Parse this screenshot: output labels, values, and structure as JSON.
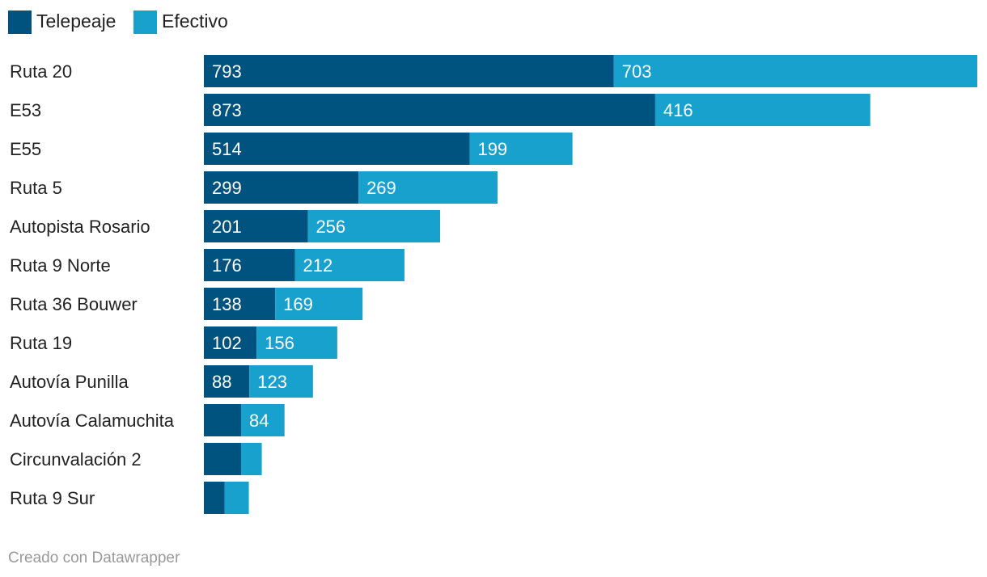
{
  "chart_data": {
    "type": "bar",
    "orientation": "horizontal",
    "stacked": true,
    "title": "",
    "xlabel": "",
    "ylabel": "",
    "legend_position": "top-left",
    "grid": false,
    "xlim": [
      0,
      1496
    ],
    "categories": [
      "Ruta 20",
      "E53",
      "E55",
      "Ruta 5",
      "Autopista Rosario",
      "Ruta 9 Norte",
      "Ruta 36 Bouwer",
      "Ruta 19",
      "Autovía Punilla",
      "Autovía Calamuchita",
      "Circunvalación 2",
      "Ruta 9 Sur"
    ],
    "series": [
      {
        "name": "Telepeaje",
        "color": "#00527f",
        "values": [
          793,
          873,
          514,
          299,
          201,
          176,
          138,
          102,
          88,
          72,
          72,
          40
        ],
        "labels": [
          "793",
          "873",
          "514",
          "299",
          "201",
          "176",
          "138",
          "102",
          "88",
          "",
          "",
          ""
        ]
      },
      {
        "name": "Efectivo",
        "color": "#18a1cd",
        "values": [
          703,
          416,
          199,
          269,
          256,
          212,
          169,
          156,
          123,
          84,
          40,
          47
        ],
        "labels": [
          "703",
          "416",
          "199",
          "269",
          "256",
          "212",
          "169",
          "156",
          "123",
          "84",
          "",
          ""
        ]
      }
    ]
  },
  "footer": {
    "credit": "Creado con Datawrapper"
  }
}
